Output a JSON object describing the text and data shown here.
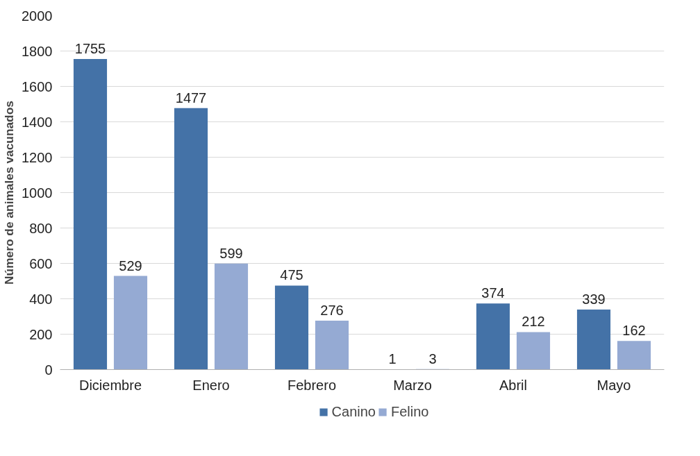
{
  "chart_data": {
    "type": "bar",
    "ylabel": "Número de animales vacunados",
    "categories": [
      "Diciembre",
      "Enero",
      "Febrero",
      "Marzo",
      "Abril",
      "Mayo"
    ],
    "series": [
      {
        "name": "Canino",
        "color": "#4472a7",
        "values": [
          1755,
          1477,
          475,
          1,
          374,
          339
        ]
      },
      {
        "name": "Felino",
        "color": "#95aad3",
        "values": [
          529,
          599,
          276,
          3,
          212,
          162
        ]
      }
    ],
    "ylim": [
      0,
      2000
    ],
    "yticks": [
      0,
      200,
      400,
      600,
      800,
      1000,
      1200,
      1400,
      1600,
      1800,
      2000
    ],
    "grid": "y",
    "legend": "bottom",
    "data_labels": true
  }
}
